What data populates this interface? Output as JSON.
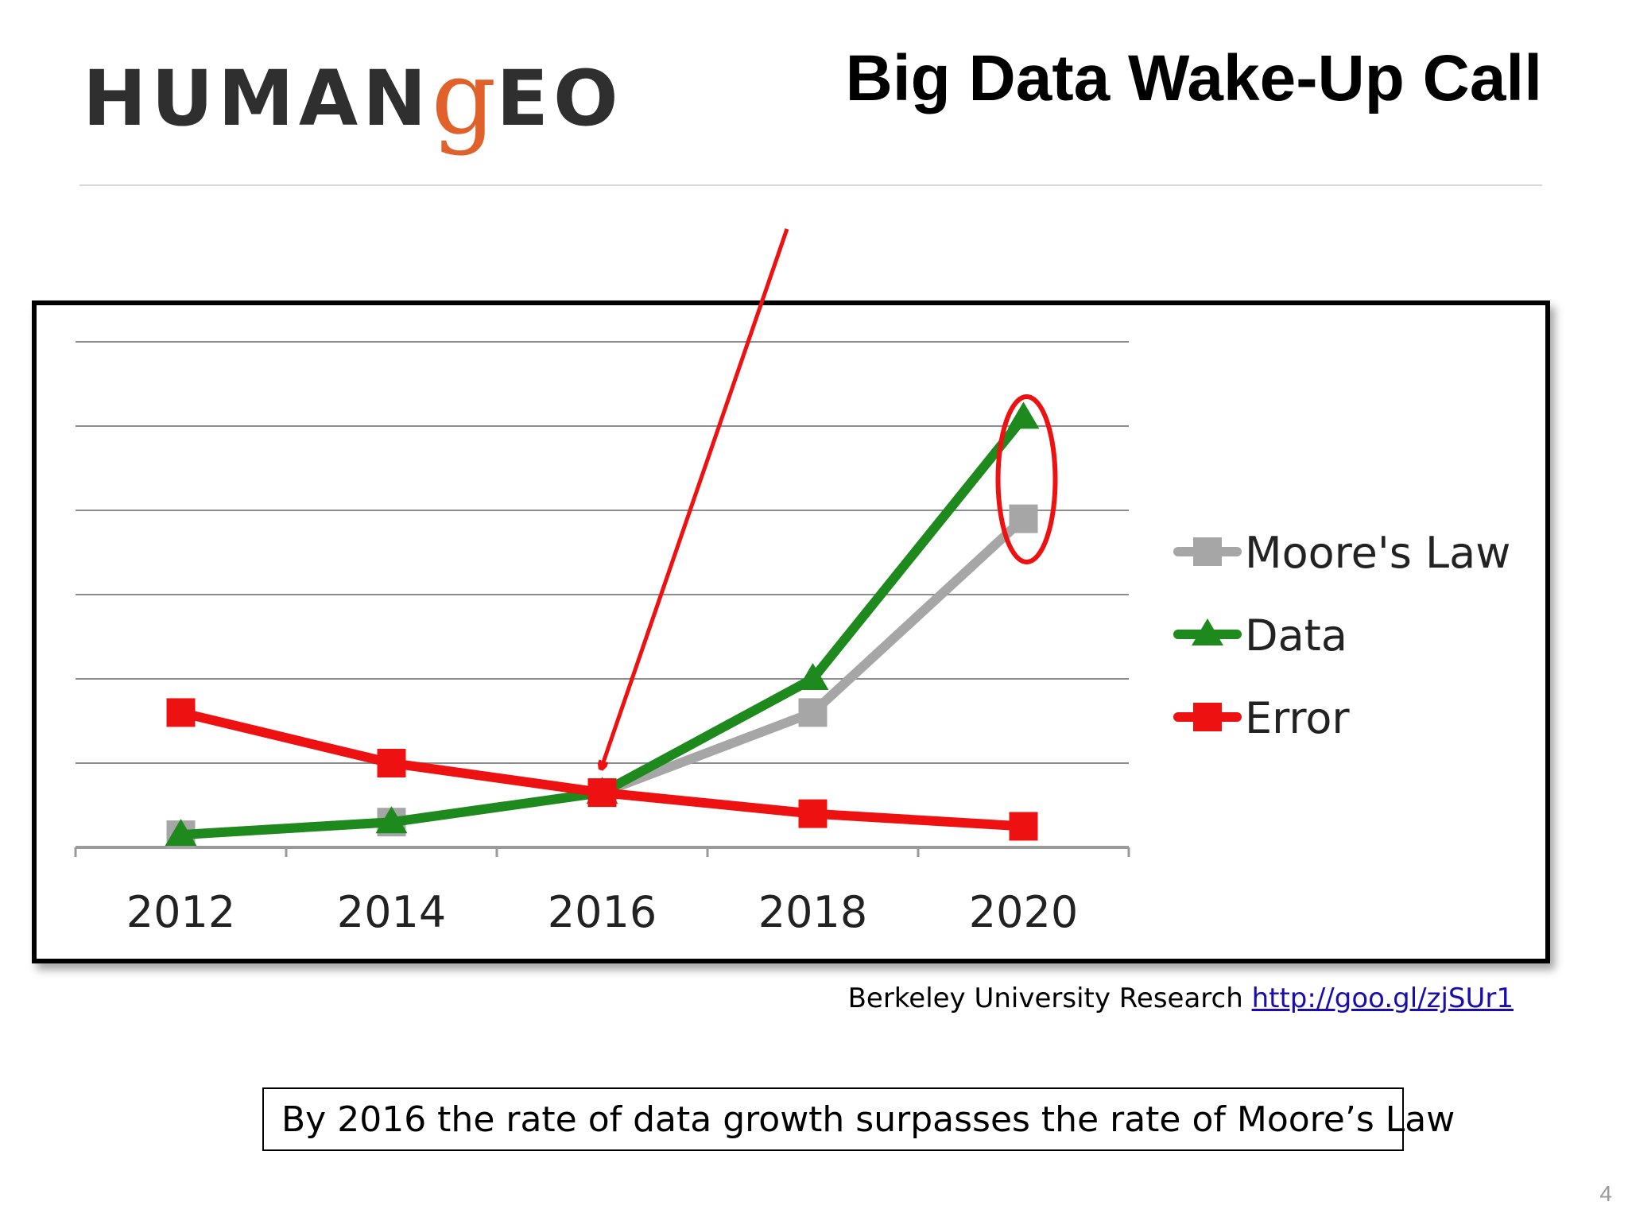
{
  "header": {
    "logo_pre": "HUMAN",
    "logo_g": "g",
    "logo_post": "EO",
    "title": "Big Data Wake-Up Call"
  },
  "chart_data": {
    "type": "line",
    "categories": [
      "2012",
      "2014",
      "2016",
      "2018",
      "2020"
    ],
    "series": [
      {
        "name": "Moore's Law",
        "color": "#a6a6a6",
        "marker": "square",
        "values": [
          0.15,
          0.3,
          0.65,
          1.6,
          3.9
        ]
      },
      {
        "name": "Data",
        "color": "#1e8a1e",
        "marker": "triangle",
        "values": [
          0.15,
          0.3,
          0.65,
          2.0,
          5.1
        ]
      },
      {
        "name": "Error",
        "color": "#ee1111",
        "marker": "square",
        "values": [
          1.6,
          1.0,
          0.65,
          0.4,
          0.25
        ]
      }
    ],
    "ylim": [
      0,
      6
    ],
    "gridlines": 6,
    "legend": "right",
    "annotations": {
      "arrow_to_category": "2016",
      "arrow_color": "#ee1111",
      "ellipse_category": "2020",
      "ellipse_color": "#ee1111"
    }
  },
  "source": {
    "text": "Berkeley University Research",
    "link": "http://goo.gl/zjSUr1"
  },
  "callout": "By 2016 the rate of data growth surpasses the rate of Moore’s Law",
  "page_number": "4"
}
